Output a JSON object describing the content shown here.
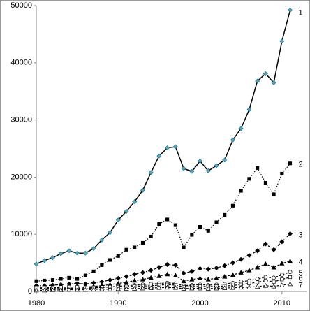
{
  "chart_data": {
    "type": "line",
    "x": [
      1980,
      1981,
      1982,
      1983,
      1984,
      1985,
      1986,
      1987,
      1988,
      1989,
      1990,
      1991,
      1992,
      1993,
      1994,
      1995,
      1996,
      1997,
      1998,
      1999,
      2000,
      2001,
      2002,
      2003,
      2004,
      2005,
      2006,
      2007,
      2008,
      2009,
      2010,
      2011
    ],
    "xlim": [
      1980,
      2013
    ],
    "xticks": [
      1980,
      1990,
      2000,
      2010
    ],
    "ylim": [
      0,
      50000
    ],
    "yticks": [
      0,
      10000,
      20000,
      30000,
      40000,
      50000
    ],
    "series": [
      {
        "name": "1",
        "color": "#000000",
        "marker_color": "#4bacc6",
        "marker": "diamond",
        "dash": "solid",
        "values": [
          4800,
          5400,
          5900,
          6600,
          7100,
          6700,
          6700,
          7500,
          9000,
          10300,
          12500,
          14000,
          15700,
          17700,
          20800,
          23700,
          25100,
          25300,
          21500,
          21000,
          22800,
          21100,
          22000,
          23000,
          26500,
          28500,
          31800,
          36800,
          38100,
          36500,
          43800,
          49200
        ]
      },
      {
        "name": "2",
        "color": "#000000",
        "marker_color": "#000000",
        "marker": "square",
        "dash": "dotted",
        "values": [
          1800,
          1900,
          2000,
          2200,
          2400,
          2200,
          2800,
          3500,
          4600,
          5500,
          6200,
          7300,
          7700,
          8500,
          9600,
          11800,
          12600,
          11600,
          7700,
          9900,
          11300,
          10600,
          12100,
          13400,
          15000,
          17600,
          19700,
          21600,
          19000,
          17000,
          20600,
          22400
        ]
      },
      {
        "name": "3",
        "color": "#000000",
        "marker_color": "#000000",
        "marker": "diamond",
        "dash": "dashdot",
        "values": [
          1000,
          1000,
          1100,
          1200,
          1300,
          1400,
          1300,
          1500,
          1700,
          2000,
          2300,
          2600,
          3000,
          3300,
          3700,
          4200,
          4700,
          4600,
          3200,
          3500,
          4000,
          3900,
          4100,
          4500,
          5000,
          5600,
          6300,
          7100,
          8300,
          7300,
          8700,
          10100
        ]
      },
      {
        "name": "4",
        "color": "#000000",
        "marker_color": "#000000",
        "marker": "triangle",
        "dash": "dashed",
        "values": [
          500,
          600,
          650,
          700,
          750,
          800,
          750,
          900,
          1000,
          1200,
          1400,
          1600,
          1900,
          2100,
          2400,
          2700,
          3000,
          2800,
          1800,
          2100,
          2300,
          2100,
          2300,
          2600,
          2900,
          3300,
          3700,
          4200,
          4800,
          4200,
          4900,
          5300
        ]
      },
      {
        "name": "5",
        "color": "#000000",
        "marker_color": "#000000",
        "marker": "circle-open",
        "dash": "dashed",
        "values": [
          400,
          450,
          500,
          500,
          550,
          550,
          500,
          600,
          700,
          800,
          900,
          1000,
          1100,
          1200,
          1300,
          1400,
          1500,
          1400,
          1000,
          1100,
          1200,
          1100,
          1200,
          1300,
          1500,
          1700,
          1900,
          2200,
          2500,
          2400,
          2900,
          3400
        ]
      },
      {
        "name": "6",
        "color": "#000000",
        "marker_color": "#000000",
        "marker": "square-open",
        "dash": "dashed",
        "values": [
          700,
          700,
          700,
          750,
          800,
          750,
          700,
          700,
          750,
          800,
          800,
          850,
          900,
          950,
          1000,
          1100,
          1200,
          1100,
          800,
          850,
          900,
          850,
          900,
          950,
          1050,
          1200,
          1400,
          1600,
          1900,
          1700,
          2100,
          2500
        ]
      },
      {
        "name": "7",
        "color": "#000000",
        "marker_color": "#000000",
        "marker": "triangle-open",
        "dash": "dashed",
        "values": [
          200,
          200,
          250,
          250,
          300,
          300,
          300,
          350,
          400,
          400,
          450,
          500,
          500,
          550,
          600,
          650,
          700,
          650,
          500,
          550,
          550,
          500,
          550,
          600,
          650,
          700,
          750,
          850,
          1000,
          900,
          1100,
          1300
        ]
      }
    ]
  }
}
